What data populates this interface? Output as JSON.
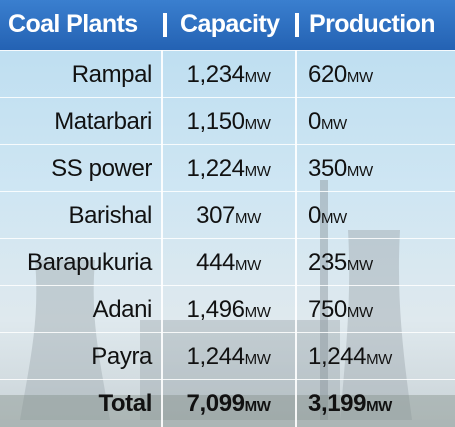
{
  "header": [
    "Coal Plants",
    "Capacity",
    "Production"
  ],
  "rows": [
    {
      "name": "Rampal",
      "capacity": {
        "number": "1,234",
        "unit": "MW"
      },
      "production": {
        "number": "620",
        "unit": "MW"
      }
    },
    {
      "name": "Matarbari",
      "capacity": {
        "number": "1,150",
        "unit": "MW"
      },
      "production": {
        "number": "0",
        "unit": "MW"
      }
    },
    {
      "name": "SS power",
      "capacity": {
        "number": "1,224",
        "unit": "MW"
      },
      "production": {
        "number": "350",
        "unit": "MW"
      }
    },
    {
      "name": "Barishal",
      "capacity": {
        "number": "307",
        "unit": "MW"
      },
      "production": {
        "number": "0",
        "unit": "MW"
      }
    },
    {
      "name": "Barapukuria",
      "capacity": {
        "number": "444",
        "unit": "MW"
      },
      "production": {
        "number": "235",
        "unit": "MW"
      }
    },
    {
      "name": "Adani",
      "capacity": {
        "number": "1,496",
        "unit": "MW"
      },
      "production": {
        "number": "750",
        "unit": "MW"
      }
    },
    {
      "name": "Payra",
      "capacity": {
        "number": "1,244",
        "unit": "MW"
      },
      "production": {
        "number": "1,244",
        "unit": "MW"
      }
    }
  ],
  "total": {
    "name": "Total",
    "capacity": {
      "number": "7,099",
      "unit": "MW"
    },
    "production": {
      "number": "3,199",
      "unit": "MW"
    }
  }
}
